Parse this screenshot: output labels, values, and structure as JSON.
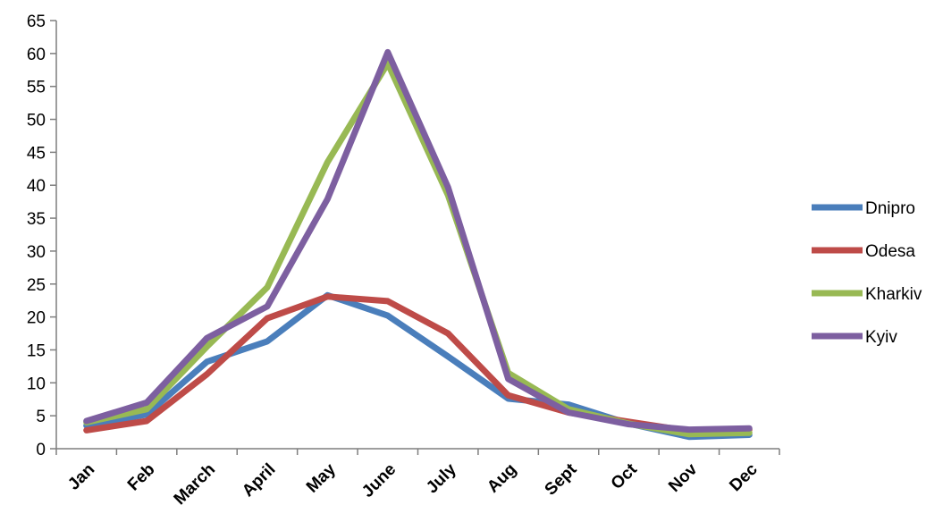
{
  "chart_data": {
    "type": "line",
    "title": "",
    "xlabel": "",
    "ylabel": "",
    "categories": [
      "Jan",
      "Feb",
      "March",
      "April",
      "May",
      "June",
      "July",
      "Aug",
      "Sept",
      "Oct",
      "Nov",
      "Dec"
    ],
    "ylim": [
      0,
      65
    ],
    "yticks": [
      0,
      5,
      10,
      15,
      20,
      25,
      30,
      35,
      40,
      45,
      50,
      55,
      60,
      65
    ],
    "grid": false,
    "legend_position": "right",
    "series": [
      {
        "name": "Dnipro",
        "color": "#4a7ebb",
        "values": [
          3.5,
          5.2,
          13.2,
          16.3,
          23.3,
          20.2,
          14.0,
          7.6,
          6.7,
          3.8,
          1.8,
          2.1
        ]
      },
      {
        "name": "Odesa",
        "color": "#be4b48",
        "values": [
          2.8,
          4.2,
          11.3,
          19.8,
          23.1,
          22.4,
          17.5,
          8.1,
          5.5,
          4.1,
          2.7,
          2.9
        ]
      },
      {
        "name": "Kharkiv",
        "color": "#98b954",
        "values": [
          4.0,
          6.0,
          15.5,
          24.5,
          43.5,
          58.5,
          38.5,
          11.5,
          6.0,
          3.8,
          2.2,
          2.4
        ]
      },
      {
        "name": "Kyiv",
        "color": "#7d5fa0",
        "values": [
          4.2,
          7.0,
          16.8,
          21.6,
          37.9,
          60.2,
          39.7,
          10.6,
          5.5,
          3.7,
          2.9,
          3.1
        ]
      }
    ]
  }
}
